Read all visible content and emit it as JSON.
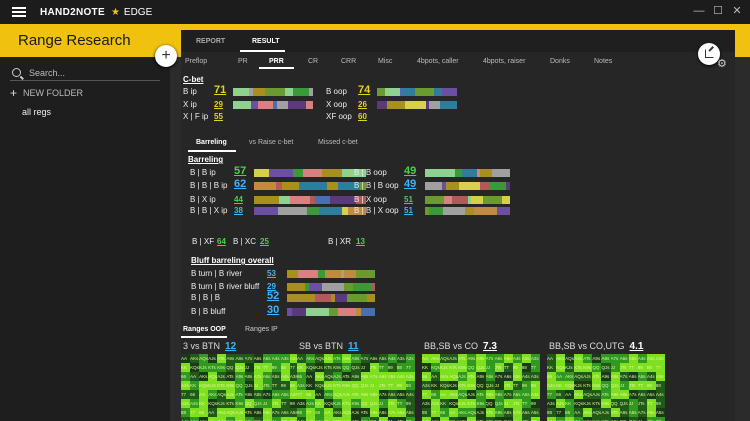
{
  "app": {
    "name": "HAND2NOTE",
    "edition": "EDGE",
    "section_title": "Range Research"
  },
  "sidebar": {
    "search_placeholder": "Search...",
    "new_folder": "NEW FOLDER",
    "items": [
      "all regs"
    ]
  },
  "top_tabs": [
    "REPORT",
    "RESULT"
  ],
  "sub_tabs": [
    "Preflop",
    "PR",
    "PRR",
    "CR",
    "CRR",
    "Misc",
    "4bpots, caller",
    "4bpots, raiser",
    "Donks",
    "Notes"
  ],
  "cbet": {
    "heading": "C-bet",
    "rows": [
      {
        "label": "B ip",
        "value": "71",
        "color": "#e8d21a",
        "size": "big"
      },
      {
        "label": "X ip",
        "value": "29",
        "color": "#e8d21a",
        "size": "small"
      },
      {
        "label": "X | F ip",
        "value": "55",
        "color": "#e8d21a",
        "size": "small"
      },
      {
        "label": "B oop",
        "value": "74",
        "color": "#e8d21a",
        "size": "big"
      },
      {
        "label": "X oop",
        "value": "26",
        "color": "#e8d21a",
        "size": "small"
      },
      {
        "label": "XF oop",
        "value": "60",
        "color": "#e8d21a",
        "size": "small"
      }
    ]
  },
  "barrel_tabs": [
    "Barreling",
    "vs Raise c-bet",
    "Missed c-bet"
  ],
  "barreling": {
    "heading": "Barreling",
    "left": [
      {
        "label": "B | B ip",
        "value": "57",
        "color": "#4fd04f",
        "size": "big"
      },
      {
        "label": "B | B | B ip",
        "value": "62",
        "color": "#3ab5ff",
        "size": "big"
      },
      {
        "label": "B | X  ip",
        "value": "44",
        "color": "#4fd04f",
        "size": "small"
      },
      {
        "label": "B | B | X ip",
        "value": "38",
        "color": "#3ab5ff",
        "size": "small"
      }
    ],
    "right": [
      {
        "label": "B | B oop",
        "value": "49",
        "color": "#4fd04f",
        "size": "big"
      },
      {
        "label": "B | B | B oop",
        "value": "49",
        "color": "#3ab5ff",
        "size": "big"
      },
      {
        "label": "B | X oop",
        "value": "51",
        "color": "#4fd04f",
        "size": "small"
      },
      {
        "label": "B | B | X oop",
        "value": "51",
        "color": "#3ab5ff",
        "size": "small"
      }
    ],
    "xf_label": "B | XF",
    "xf_value": "64",
    "xc_label": "B | XC",
    "xc_value": "25",
    "xr_label": "B | XR",
    "xr_value": "13"
  },
  "bluff": {
    "heading": "Bluff barreling overall",
    "rows": [
      {
        "label": "B turn | B river",
        "value": "53",
        "color": "#3ab5ff",
        "size": "small"
      },
      {
        "label": "B turn | B river bluff",
        "value": "29",
        "color": "#3ab5ff",
        "size": "small"
      },
      {
        "label": "B | B | B",
        "value": "52",
        "color": "#3ab5ff",
        "size": "big"
      },
      {
        "label": "B | B bluff",
        "value": "30",
        "color": "#3ab5ff",
        "size": "big"
      }
    ]
  },
  "range_tabs": [
    "Ranges OOP",
    "Ranges IP"
  ],
  "ranges": [
    {
      "label": "3 vs BTN",
      "value": "12",
      "color": "#3ab5ff"
    },
    {
      "label": "SB vs BTN",
      "value": "11",
      "color": "#3ab5ff"
    },
    {
      "label": "BB,SB vs CO",
      "value": "7.3",
      "color": "#ffffff"
    },
    {
      "label": "BB,SB vs CO,UTG",
      "value": "4.1",
      "color": "#ffffff"
    }
  ],
  "colors": {
    "accent": "#f0c20f"
  }
}
